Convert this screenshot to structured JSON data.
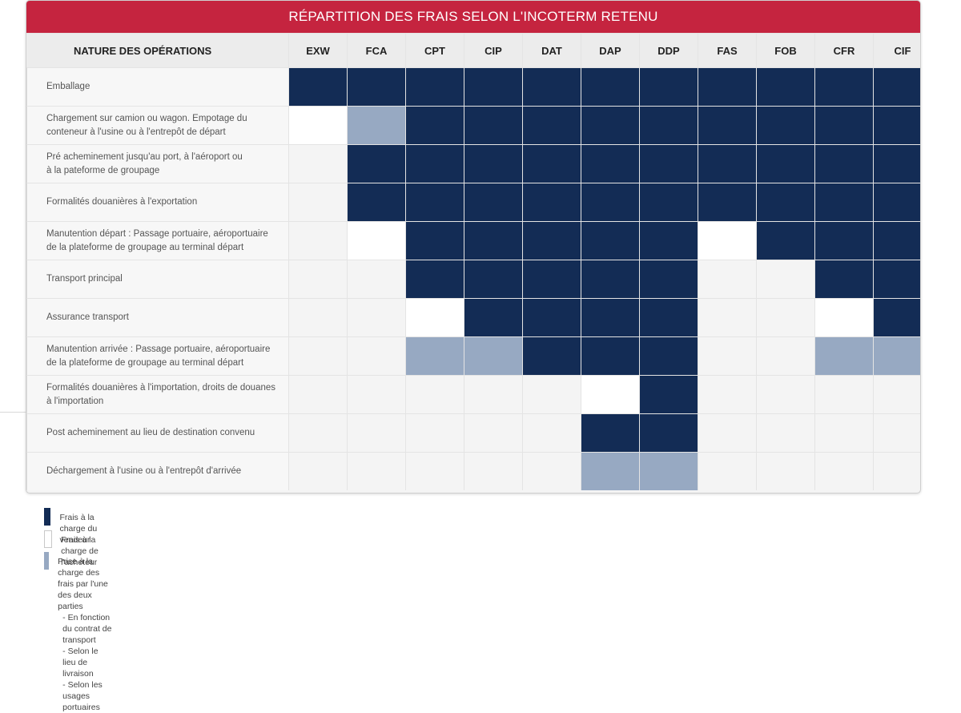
{
  "title": "RÉPARTITION DES FRAIS SELON L'INCOTERM RETENU",
  "header": {
    "operations_label": "NATURE DES OPÉRATIONS",
    "incoterms": [
      "EXW",
      "FCA",
      "CPT",
      "CIP",
      "DAT",
      "DAP",
      "DDP",
      "FAS",
      "FOB",
      "CFR",
      "CIF"
    ]
  },
  "rows": [
    {
      "label": "Emballage",
      "cells": [
        "v",
        "v",
        "v",
        "v",
        "v",
        "v",
        "v",
        "v",
        "v",
        "v",
        "v"
      ]
    },
    {
      "label": "Chargement sur camion ou wagon. Empotage du\nconteneur à l'usine ou à l'entrepôt de départ",
      "cells": [
        "a",
        "s",
        "v",
        "v",
        "v",
        "v",
        "v",
        "v",
        "v",
        "v",
        "v"
      ]
    },
    {
      "label": "Pré acheminement jusqu'au port, à l'aéroport ou\nà la pateforme de groupage",
      "cells": [
        "n",
        "v",
        "v",
        "v",
        "v",
        "v",
        "v",
        "v",
        "v",
        "v",
        "v"
      ]
    },
    {
      "label": "Formalités douanières à l'exportation",
      "cells": [
        "n",
        "v",
        "v",
        "v",
        "v",
        "v",
        "v",
        "v",
        "v",
        "v",
        "v"
      ]
    },
    {
      "label": "Manutention départ : Passage portuaire, aéroportuaire\nde la plateforme de groupage au terminal départ",
      "cells": [
        "n",
        "a",
        "v",
        "v",
        "v",
        "v",
        "v",
        "a",
        "v",
        "v",
        "v"
      ]
    },
    {
      "label": "Transport principal",
      "cells": [
        "n",
        "n",
        "v",
        "v",
        "v",
        "v",
        "v",
        "n",
        "n",
        "v",
        "v"
      ]
    },
    {
      "label": "Assurance transport",
      "cells": [
        "n",
        "n",
        "a",
        "v",
        "v",
        "v",
        "v",
        "n",
        "n",
        "a",
        "v"
      ]
    },
    {
      "label": "Manutention arrivée : Passage portuaire, aéroportuaire\nde la plateforme de groupage au terminal départ",
      "cells": [
        "n",
        "n",
        "s",
        "s",
        "v",
        "v",
        "v",
        "n",
        "n",
        "s",
        "s"
      ]
    },
    {
      "label": "Formalités douanières à l'importation, droits de douanes\nà l'importation",
      "cells": [
        "n",
        "n",
        "n",
        "n",
        "n",
        "a",
        "v",
        "n",
        "n",
        "n",
        "n"
      ]
    },
    {
      "label": "Post acheminement au lieu de destination convenu",
      "cells": [
        "n",
        "n",
        "n",
        "n",
        "n",
        "v",
        "v",
        "n",
        "n",
        "n",
        "n"
      ]
    },
    {
      "label": "Déchargement à l'usine ou à l'entrepôt d'arrivée",
      "cells": [
        "n",
        "n",
        "n",
        "n",
        "n",
        "s",
        "s",
        "n",
        "n",
        "n",
        "n"
      ]
    }
  ],
  "cell_codes": {
    "v": "vendeur",
    "a": "acheteur",
    "s": "partage",
    "n": "vide"
  },
  "colors": {
    "title_bg": "#c5243f",
    "vendeur": "#132c55",
    "acheteur": "#ffffff",
    "partage": "#97a9c2",
    "vide": "#f4f4f4"
  },
  "legend": {
    "vendeur": "Frais à la charge du vendeur",
    "acheteur": "Frais à la charge de l'acheteur",
    "partage": "Prise à la charge des frais par l'une des deux parties",
    "partage_details": [
      "- En fonction du contrat de transport",
      "- Selon le lieu de livraison",
      "- Selon les usages portuaires"
    ]
  }
}
